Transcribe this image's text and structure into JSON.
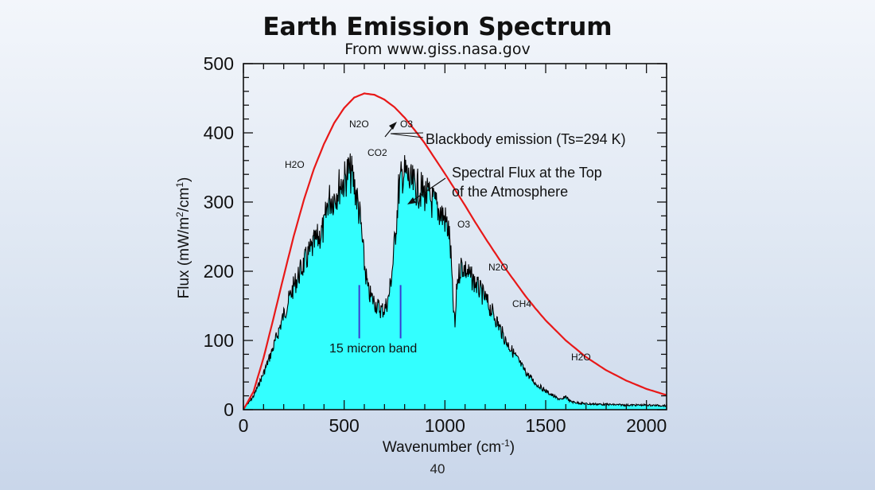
{
  "slide": {
    "title": "Earth Emission Spectrum",
    "subtitle": "From www.giss.nasa.gov",
    "page_number": "40"
  },
  "chart_data": {
    "type": "area",
    "title": "",
    "xlabel": "Wavenumber",
    "xlabel_unit": "(cm",
    "xlabel_unit_sup": "-1",
    "xlabel_unit_close": ")",
    "ylabel": "Flux (mW/m",
    "ylabel_sup1": "2",
    "ylabel_mid": "/cm",
    "ylabel_sup2": "1",
    "ylabel_close": ")",
    "xlim": [
      0,
      2100
    ],
    "ylim": [
      0,
      500
    ],
    "xticks": [
      "0",
      "500",
      "1000",
      "1500",
      "2000"
    ],
    "yticks": [
      "0",
      "100",
      "200",
      "300",
      "400",
      "500"
    ],
    "grid": false,
    "colors": {
      "fill": "#33ffff",
      "flux_line": "#000000",
      "blackbody": "#e81818",
      "band_marker": "#3a3ad0"
    },
    "series": [
      {
        "name": "Blackbody emission (Ts=294 K)",
        "x": [
          0,
          50,
          100,
          150,
          200,
          250,
          300,
          350,
          400,
          450,
          500,
          550,
          600,
          650,
          700,
          750,
          800,
          850,
          900,
          950,
          1000,
          1050,
          1100,
          1150,
          1200,
          1250,
          1300,
          1350,
          1400,
          1450,
          1500,
          1600,
          1700,
          1800,
          1900,
          2000,
          2100
        ],
        "y": [
          0,
          26,
          75,
          133,
          193,
          251,
          303,
          348,
          384,
          414,
          436,
          451,
          457,
          455,
          448,
          437,
          422,
          404,
          385,
          363,
          341,
          318,
          295,
          271,
          248,
          226,
          204,
          184,
          164,
          146,
          129,
          100,
          76,
          57,
          42,
          30,
          21
        ]
      },
      {
        "name": "Spectral Flux at the Top of the Atmosphere",
        "x": [
          0,
          50,
          100,
          150,
          200,
          250,
          300,
          350,
          400,
          420,
          450,
          480,
          500,
          520,
          540,
          560,
          580,
          600,
          620,
          640,
          660,
          680,
          700,
          720,
          740,
          760,
          770,
          790,
          810,
          830,
          850,
          880,
          900,
          930,
          950,
          980,
          1000,
          1020,
          1030,
          1040,
          1050,
          1060,
          1080,
          1100,
          1120,
          1150,
          1200,
          1250,
          1300,
          1350,
          1400,
          1450,
          1500,
          1550,
          1580,
          1600,
          1620,
          1650,
          1700,
          1800,
          1900,
          2000,
          2100
        ],
        "y": [
          0,
          22,
          58,
          100,
          150,
          195,
          230,
          260,
          285,
          330,
          335,
          355,
          360,
          375,
          368,
          340,
          300,
          230,
          185,
          175,
          165,
          158,
          158,
          175,
          225,
          300,
          345,
          372,
          370,
          355,
          352,
          345,
          340,
          330,
          322,
          310,
          300,
          280,
          240,
          170,
          130,
          200,
          228,
          222,
          212,
          200,
          175,
          145,
          110,
          85,
          60,
          42,
          30,
          20,
          16,
          22,
          14,
          12,
          10,
          9,
          8,
          8,
          7
        ]
      }
    ],
    "annotations": {
      "blackbody_label": "Blackbody emission (Ts=294 K)",
      "flux_label_line1": "Spectral Flux at the Top",
      "flux_label_line2": "of the Atmosphere",
      "band_label": "15 micron band",
      "gases": [
        "H2O",
        "N2O",
        "O3",
        "CO2",
        "O3",
        "N2O",
        "CH4",
        "H2O"
      ]
    }
  }
}
